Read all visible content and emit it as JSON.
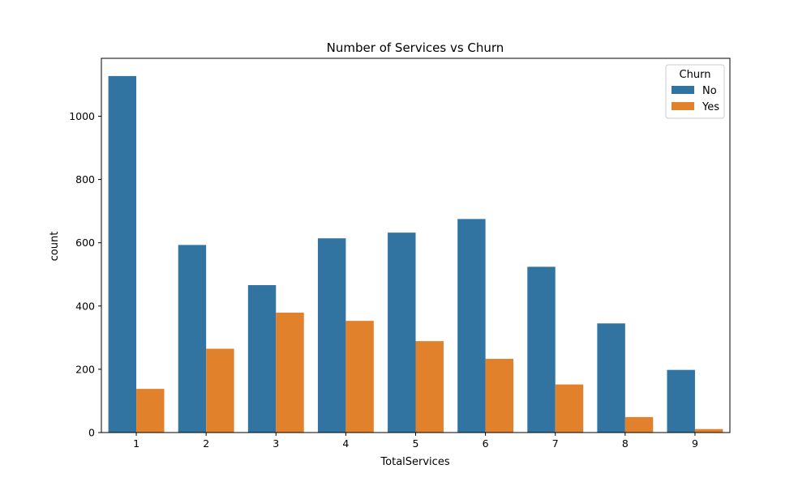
{
  "chart_data": {
    "type": "bar",
    "title": "Number of Services vs Churn",
    "xlabel": "TotalServices",
    "ylabel": "count",
    "categories": [
      "1",
      "2",
      "3",
      "4",
      "5",
      "6",
      "7",
      "8",
      "9"
    ],
    "series": [
      {
        "name": "No",
        "color": "#3274a1",
        "values": [
          1127,
          593,
          466,
          614,
          632,
          675,
          524,
          345,
          198
        ]
      },
      {
        "name": "Yes",
        "color": "#e1812c",
        "values": [
          138,
          265,
          379,
          353,
          289,
          233,
          152,
          49,
          11
        ]
      }
    ],
    "ylim": [
      0,
      1183
    ],
    "yticks": [
      0,
      200,
      400,
      600,
      800,
      1000
    ],
    "legend": {
      "title": "Churn",
      "placement": "top-right"
    },
    "grid": false
  }
}
